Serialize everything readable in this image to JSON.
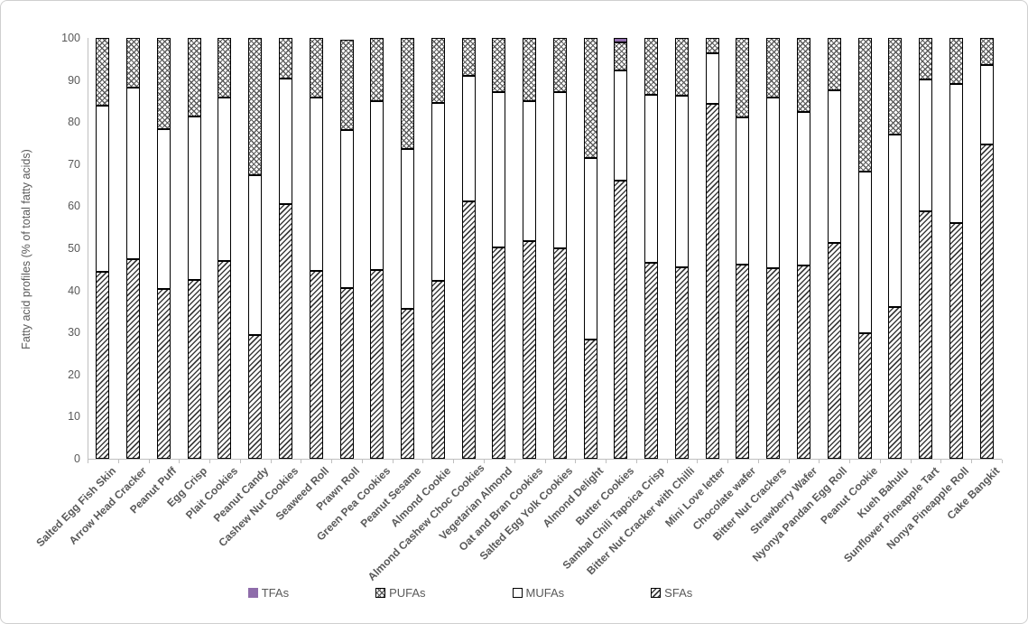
{
  "colors": {
    "text_gray": "#595959",
    "axis_gray": "#bfbfbf",
    "tfa_purple": "#8e6caa",
    "hatch_dark": "#3d3d3d"
  },
  "chart_data": {
    "type": "bar",
    "subtype": "stacked-vertical",
    "title": "",
    "xlabel": "",
    "ylabel": "Fatty acid profiles (% of total fatty acids)",
    "ylim": [
      0,
      100
    ],
    "yticks": [
      0,
      10,
      20,
      30,
      40,
      50,
      60,
      70,
      80,
      90,
      100
    ],
    "grid": false,
    "legend_position": "bottom",
    "categories": [
      "Salted Egg Fish Skin",
      "Arrow Head Cracker",
      "Peanut Puff",
      "Egg Crisp",
      "Plait Cookies",
      "Peanut Candy",
      "Cashew Nut Cookies",
      "Seaweed Roll",
      "Prawn Roll",
      "Green Pea Cookies",
      "Peanut Sesame",
      "Almond Cookie",
      "Almond Cashew Choc Cookies",
      "Vegetarian Almond",
      "Oat and Bran Cookies",
      "Salted Egg Yolk Cookies",
      "Almond Delight",
      "Butter Cookies",
      "Sambal Chili Tapoica Crisp",
      "Bitter Nut Cracker with Chilli",
      "Mini Love letter",
      "Chocolate wafer",
      "Bitter Nut Crackers",
      "Strawberry Wafer",
      "Nyonya Pandan Egg Roll",
      "Peanut Cookie",
      "Kueh Bahulu",
      "Sunflower Pineapple Tart",
      "Nonya Pineapple Roll",
      "Cake Bangkit"
    ],
    "series": [
      {
        "name": "SFAs",
        "pattern": "sfa",
        "values": [
          44.5,
          47.5,
          40.3,
          42.4,
          47.1,
          29.5,
          60.5,
          44.6,
          40.5,
          44.8,
          35.7,
          42.2,
          61.1,
          50.2,
          51.8,
          49.9,
          28.3,
          66.1,
          46.5,
          45.4,
          84.4,
          46.1,
          45.3,
          45.9,
          51.3,
          29.9,
          36.0,
          58.7,
          56.1,
          74.7
        ]
      },
      {
        "name": "MUFAs",
        "pattern": "mufa",
        "values": [
          39.5,
          40.8,
          38.0,
          39.0,
          38.8,
          37.8,
          29.8,
          41.2,
          37.6,
          40.2,
          37.9,
          42.4,
          29.9,
          37.0,
          33.2,
          37.3,
          43.1,
          26.1,
          40.0,
          40.9,
          11.9,
          35.1,
          40.5,
          36.4,
          36.3,
          38.4,
          41.1,
          31.4,
          33.0,
          18.9
        ]
      },
      {
        "name": "PUFAs",
        "pattern": "pufa",
        "values": [
          16.0,
          11.7,
          21.7,
          18.6,
          14.1,
          32.7,
          9.7,
          14.2,
          21.4,
          15.0,
          26.4,
          15.4,
          9.0,
          12.8,
          15.0,
          12.8,
          28.6,
          6.8,
          13.5,
          13.7,
          3.7,
          18.8,
          14.2,
          17.7,
          12.4,
          31.7,
          22.9,
          9.9,
          10.9,
          6.4
        ]
      },
      {
        "name": "TFAs",
        "pattern": "tfa",
        "values": [
          0,
          0,
          0,
          0,
          0,
          0,
          0,
          0,
          0,
          0,
          0,
          0,
          0,
          0,
          0,
          0,
          0,
          1.0,
          0,
          0,
          0,
          0,
          0,
          0,
          0,
          0,
          0,
          0,
          0,
          0
        ]
      }
    ],
    "legend": [
      {
        "label": "TFAs",
        "pattern": "tfa"
      },
      {
        "label": "PUFAs",
        "pattern": "pufa"
      },
      {
        "label": "MUFAs",
        "pattern": "mufa"
      },
      {
        "label": "SFAs",
        "pattern": "sfa"
      }
    ]
  }
}
